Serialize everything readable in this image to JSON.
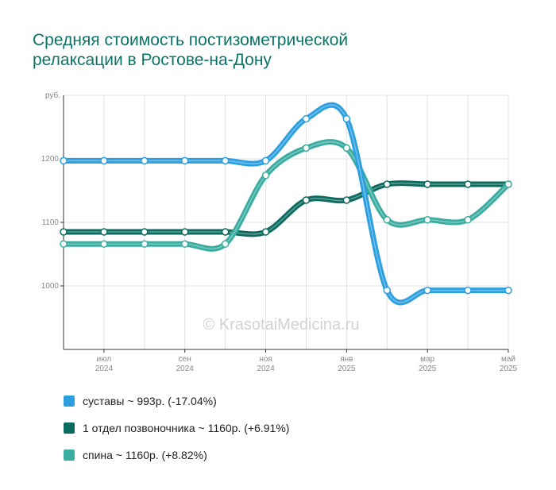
{
  "title_lines": [
    "Средняя стоимость постизометрической",
    "релаксации в Ростове-на-Дону"
  ],
  "watermark": "© KrasotaiMedicina.ru",
  "chart_data": {
    "type": "line",
    "title": "Средняя стоимость постизометрической релаксации в Ростове-на-Дону",
    "ylabel": "руб.",
    "ylim": [
      900,
      1300
    ],
    "yticks": [
      1000,
      1100,
      1200
    ],
    "grid": true,
    "x_labels": [
      {
        "m": "июл",
        "y": "2024",
        "i": 1
      },
      {
        "m": "сен",
        "y": "2024",
        "i": 3
      },
      {
        "m": "ноя",
        "y": "2024",
        "i": 5
      },
      {
        "m": "янв",
        "y": "2025",
        "i": 7
      },
      {
        "m": "мар",
        "y": "2025",
        "i": 9
      },
      {
        "m": "май",
        "y": "2025",
        "i": 11
      }
    ],
    "series": [
      {
        "name": "суставы",
        "color": "#2b9fe0",
        "values": [
          1197,
          1197,
          1197,
          1197,
          1197,
          1197,
          1263,
          1263,
          993,
          993,
          993,
          993
        ]
      },
      {
        "name": "1 отдел позвоночника",
        "color": "#0b6b5f",
        "values": [
          1085,
          1085,
          1085,
          1085,
          1085,
          1085,
          1135,
          1135,
          1160,
          1160,
          1160,
          1160
        ]
      },
      {
        "name": "спина",
        "color": "#3aada0",
        "values": [
          1066,
          1066,
          1066,
          1066,
          1066,
          1174,
          1217,
          1217,
          1104,
          1104,
          1104,
          1160
        ]
      }
    ]
  },
  "legend": [
    {
      "text": "суставы ~ 993р. (-17.04%)",
      "color": "#2b9fe0"
    },
    {
      "text": "1 отдел позвоночника ~ 1160р. (+6.91%)",
      "color": "#0b6b5f"
    },
    {
      "text": "спина ~ 1160р. (+8.82%)",
      "color": "#3aada0"
    }
  ]
}
